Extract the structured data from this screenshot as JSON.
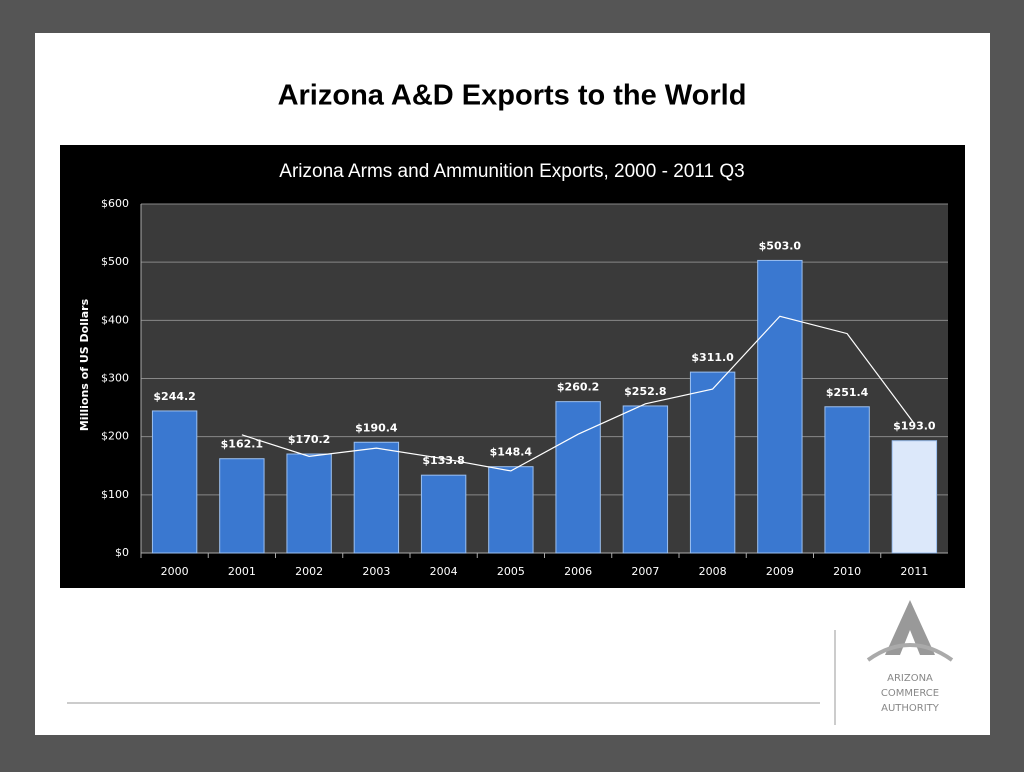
{
  "slide_title": "Arizona A&D Exports to the World",
  "logo": {
    "lines": [
      "ARIZONA",
      "COMMERCE",
      "AUTHORITY"
    ]
  },
  "chart_data": {
    "type": "bar",
    "title": "Arizona Arms and Ammunition Exports, 2000 - 2011 Q3",
    "y_label": "Millions of US Dollars",
    "categories": [
      "2000",
      "2001",
      "2002",
      "2003",
      "2004",
      "2005",
      "2006",
      "2007",
      "2008",
      "2009",
      "2010",
      "2011"
    ],
    "values": [
      244.2,
      162.1,
      170.2,
      190.4,
      133.8,
      148.4,
      260.2,
      252.8,
      311.0,
      503.0,
      251.4,
      193.0
    ],
    "value_labels": [
      "$244.2",
      "$162.1",
      "$170.2",
      "$190.4",
      "$133.8",
      "$148.4",
      "$260.2",
      "$252.8",
      "$311.0",
      "$503.0",
      "$251.4",
      "$193.0"
    ],
    "colors": [
      "#3a78d0",
      "#3a78d0",
      "#3a78d0",
      "#3a78d0",
      "#3a78d0",
      "#3a78d0",
      "#3a78d0",
      "#3a78d0",
      "#3a78d0",
      "#3a78d0",
      "#3a78d0",
      "#dce8fa"
    ],
    "overlay": {
      "type": "line",
      "color": "#ffffff",
      "values": [
        null,
        203.15,
        166.15,
        180.3,
        162.1,
        141.1,
        204.3,
        256.5,
        281.9,
        407.0,
        377.2,
        222.2
      ]
    },
    "ylim": [
      0,
      600
    ],
    "yticks": [
      {
        "value": 0,
        "label": "$0"
      },
      {
        "value": 100,
        "label": "$100"
      },
      {
        "value": 200,
        "label": "$200"
      },
      {
        "value": 300,
        "label": "$300"
      },
      {
        "value": 400,
        "label": "$400"
      },
      {
        "value": 500,
        "label": "$500"
      },
      {
        "value": 600,
        "label": "$600"
      }
    ],
    "grid": true
  }
}
